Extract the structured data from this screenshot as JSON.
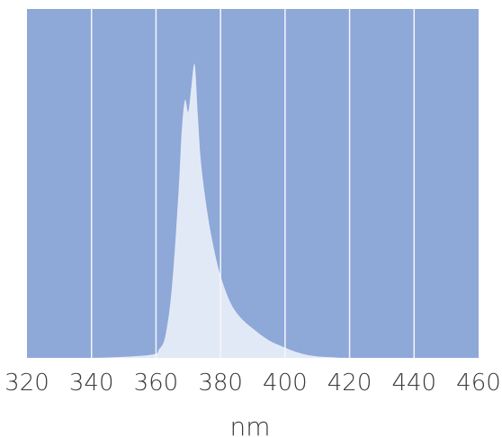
{
  "chart_data": {
    "type": "area",
    "title": "",
    "xlabel": "nm",
    "ylabel": "",
    "xlim": [
      320,
      460
    ],
    "ylim": [
      0,
      1
    ],
    "grid": true,
    "colors": {
      "plot_background": "#8ea8d8",
      "area_fill": "#e2e9f6",
      "grid": "#f4f6fb"
    },
    "x_ticks": [
      320,
      340,
      360,
      380,
      400,
      420,
      440,
      460
    ],
    "x_tick_labels": [
      "320",
      "340",
      "360",
      "380",
      "400",
      "420",
      "440",
      "460"
    ],
    "series": [
      {
        "x": [
          320,
          340,
          358,
          361,
          363,
          365,
          367,
          368,
          369,
          370,
          371,
          372,
          373,
          374,
          376,
          378,
          380,
          383,
          386,
          390,
          395,
          400,
          405,
          410,
          415,
          420,
          440,
          460
        ],
        "y": [
          0.0,
          0.0,
          0.01,
          0.03,
          0.08,
          0.25,
          0.57,
          0.78,
          0.88,
          0.84,
          0.93,
          1.0,
          0.82,
          0.66,
          0.49,
          0.37,
          0.28,
          0.19,
          0.14,
          0.1,
          0.06,
          0.035,
          0.015,
          0.005,
          0.002,
          0.0,
          0.0,
          0.0
        ]
      }
    ]
  }
}
